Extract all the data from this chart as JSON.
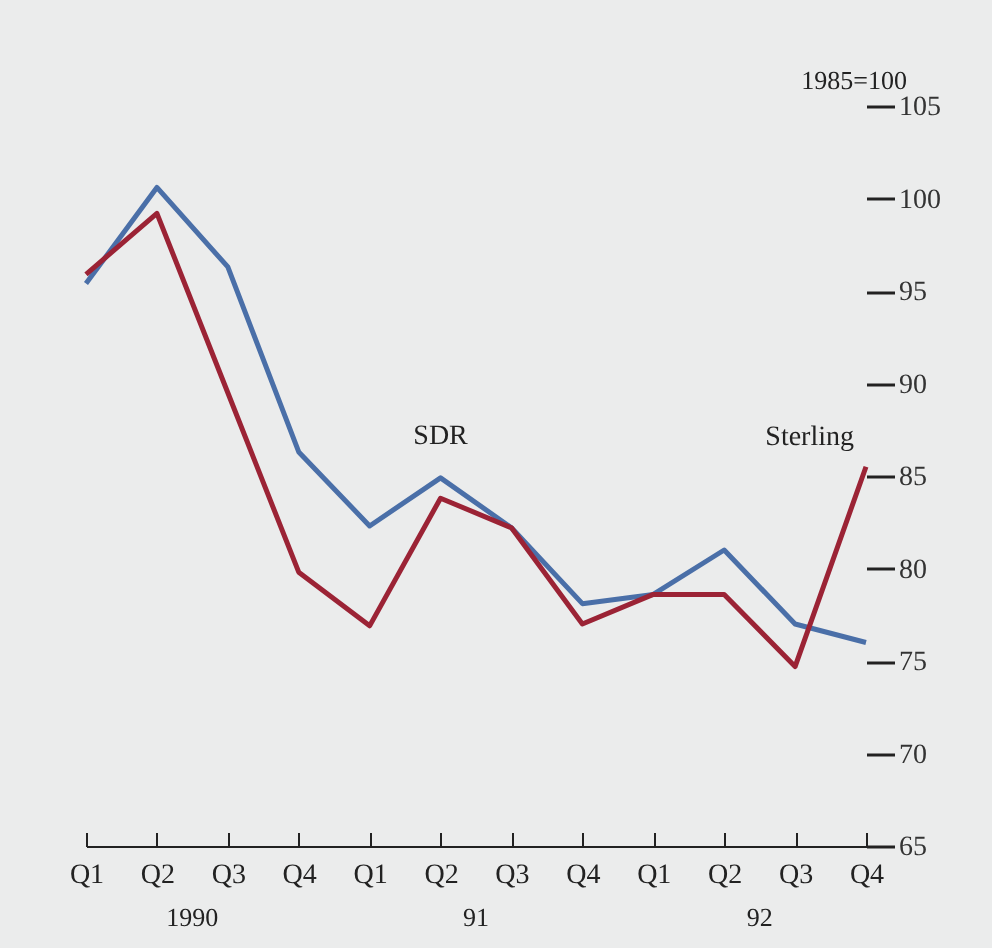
{
  "chart_data": {
    "type": "line",
    "ylabel": "1985=100",
    "categories": [
      "Q1",
      "Q2",
      "Q3",
      "Q4",
      "Q1",
      "Q2",
      "Q3",
      "Q4",
      "Q1",
      "Q2",
      "Q3",
      "Q4"
    ],
    "series": [
      {
        "name": "SDR",
        "color": "#4a6fa8",
        "values": [
          95.4,
          100.6,
          96.3,
          86.3,
          82.3,
          84.9,
          82.2,
          78.1,
          78.6,
          81.0,
          77.0,
          76.0
        ]
      },
      {
        "name": "Sterling",
        "color": "#9b2335",
        "values": [
          95.9,
          99.2,
          89.5,
          79.8,
          76.9,
          83.8,
          82.2,
          77.0,
          78.6,
          78.6,
          74.7,
          85.5
        ]
      }
    ],
    "ylim": [
      65,
      105
    ],
    "yticks": [
      65,
      70,
      75,
      80,
      85,
      90,
      95,
      100,
      105
    ],
    "annotations": [
      "1990",
      "91",
      "92"
    ],
    "grid": false,
    "legend": false,
    "line_style": "solid",
    "marker": "none"
  }
}
